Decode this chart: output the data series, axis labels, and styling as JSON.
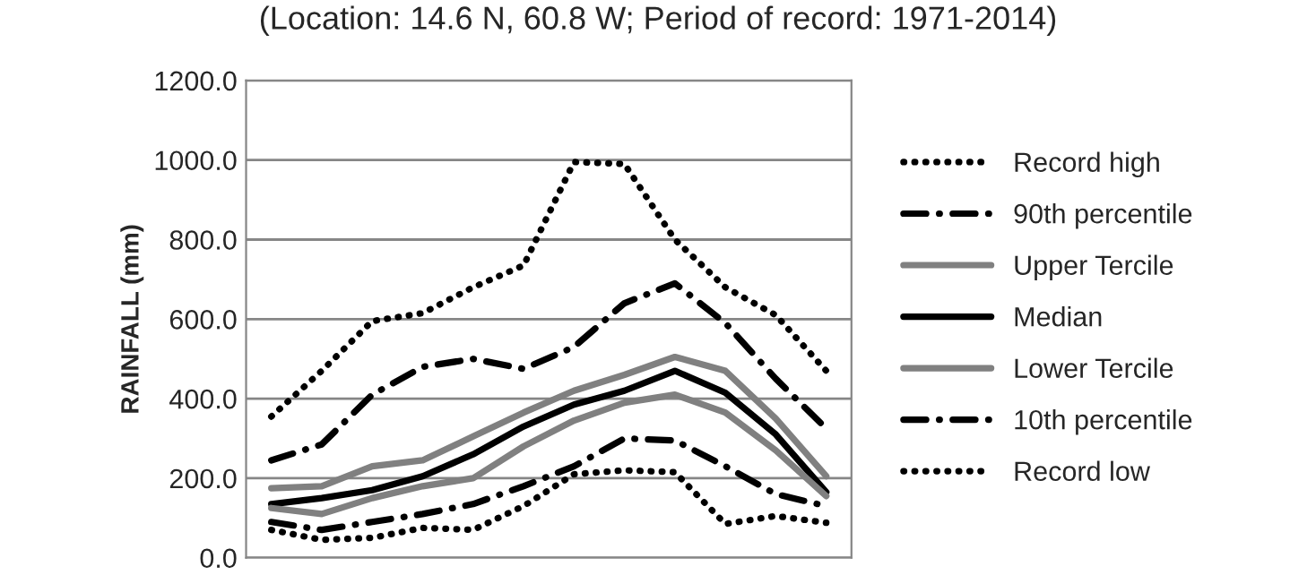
{
  "chart_data": {
    "type": "line",
    "title": "(Location: 14.6 N, 60.8 W; Period of record: 1971-2014)",
    "ylabel": "RAINFALL (mm)",
    "categories": [
      null,
      null,
      null,
      null,
      null,
      null,
      null,
      null,
      null,
      null,
      null,
      null
    ],
    "series": [
      {
        "name": "Record high",
        "color": "#000000",
        "line_style": "dotted",
        "values": [
          355,
          470,
          595,
          615,
          680,
          735,
          995,
          990,
          800,
          680,
          610,
          470
        ]
      },
      {
        "name": "90th percentile",
        "color": "#000000",
        "line_style": "dashdot",
        "values": [
          245,
          285,
          410,
          480,
          500,
          475,
          530,
          640,
          690,
          590,
          450,
          325
        ]
      },
      {
        "name": "Upper Tercile",
        "color": "#808080",
        "line_style": "solid",
        "values": [
          175,
          180,
          230,
          245,
          305,
          365,
          420,
          460,
          505,
          470,
          350,
          205
        ]
      },
      {
        "name": "Median",
        "color": "#000000",
        "line_style": "solid",
        "values": [
          135,
          150,
          170,
          205,
          260,
          330,
          385,
          420,
          470,
          415,
          310,
          165
        ]
      },
      {
        "name": "Lower Tercile",
        "color": "#808080",
        "line_style": "solid",
        "values": [
          125,
          110,
          150,
          180,
          200,
          280,
          345,
          390,
          410,
          365,
          270,
          155
        ]
      },
      {
        "name": "10th percentile",
        "color": "#000000",
        "line_style": "dashdot",
        "values": [
          90,
          70,
          90,
          110,
          135,
          180,
          230,
          300,
          295,
          230,
          160,
          130
        ]
      },
      {
        "name": "Record low",
        "color": "#000000",
        "line_style": "dotted",
        "values": [
          70,
          45,
          50,
          75,
          70,
          130,
          210,
          220,
          215,
          85,
          105,
          88
        ]
      }
    ],
    "ylim": [
      0,
      1200
    ],
    "yticks": [
      {
        "value": 0,
        "label": "0.0"
      },
      {
        "value": 200,
        "label": "200.0"
      },
      {
        "value": 400,
        "label": "400.0"
      },
      {
        "value": 600,
        "label": "600.0"
      },
      {
        "value": 800,
        "label": "800.0"
      },
      {
        "value": 1000,
        "label": "1000.0"
      },
      {
        "value": 1200,
        "label": "1200.0"
      }
    ],
    "grid": "y",
    "legend": "right",
    "tick_labels": "y"
  }
}
